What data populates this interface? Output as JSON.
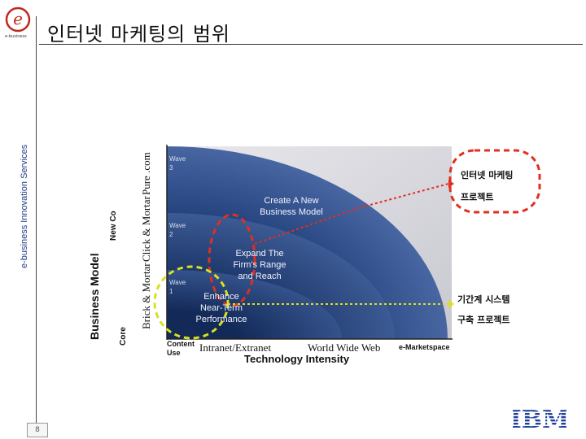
{
  "header": {
    "title": "인터넷 마케팅의 범위",
    "logo_letter": "e",
    "logo_sub": "e-business"
  },
  "sidebar": {
    "vertical_label": "e-business Innovation Services"
  },
  "footer": {
    "page_number": "8",
    "brand": "IBM"
  },
  "diagram": {
    "y_axis_label": "Business Model",
    "y_axis_categories": [
      "Brick & Mortar",
      "Click & Mortar",
      "Pure .com"
    ],
    "y_axis_side_fragment": "New Co",
    "y_axis_side_fragment_2": "Core",
    "x_axis_label": "Technology Intensity",
    "x_axis_categories": [
      "Content Use",
      "Intranet/Extranet",
      "World Wide Web",
      "e-Marketspace"
    ],
    "waves": [
      {
        "label": "Wave",
        "number": "1"
      },
      {
        "label": "Wave",
        "number": "2"
      },
      {
        "label": "Wave",
        "number": "3"
      }
    ],
    "bubbles": [
      "Enhance Near-Term Performance",
      "Expand The Firm's Range and Reach",
      "Create A New Business Model"
    ],
    "colors": {
      "outer": "#2a4a84",
      "middle": "#1f3a6e",
      "inner": "#163160",
      "highlight_red": "#e03020",
      "highlight_yellow": "#d8e020"
    }
  },
  "callouts": [
    {
      "name": "internet-marketing-project",
      "line1": "인터넷 마케팅",
      "line2": "프로젝트",
      "color": "#e03020"
    },
    {
      "name": "backbone-system-project",
      "line1": "기간계 시스템",
      "line2": "구축 프로젝트",
      "color": "#d8e020"
    }
  ]
}
